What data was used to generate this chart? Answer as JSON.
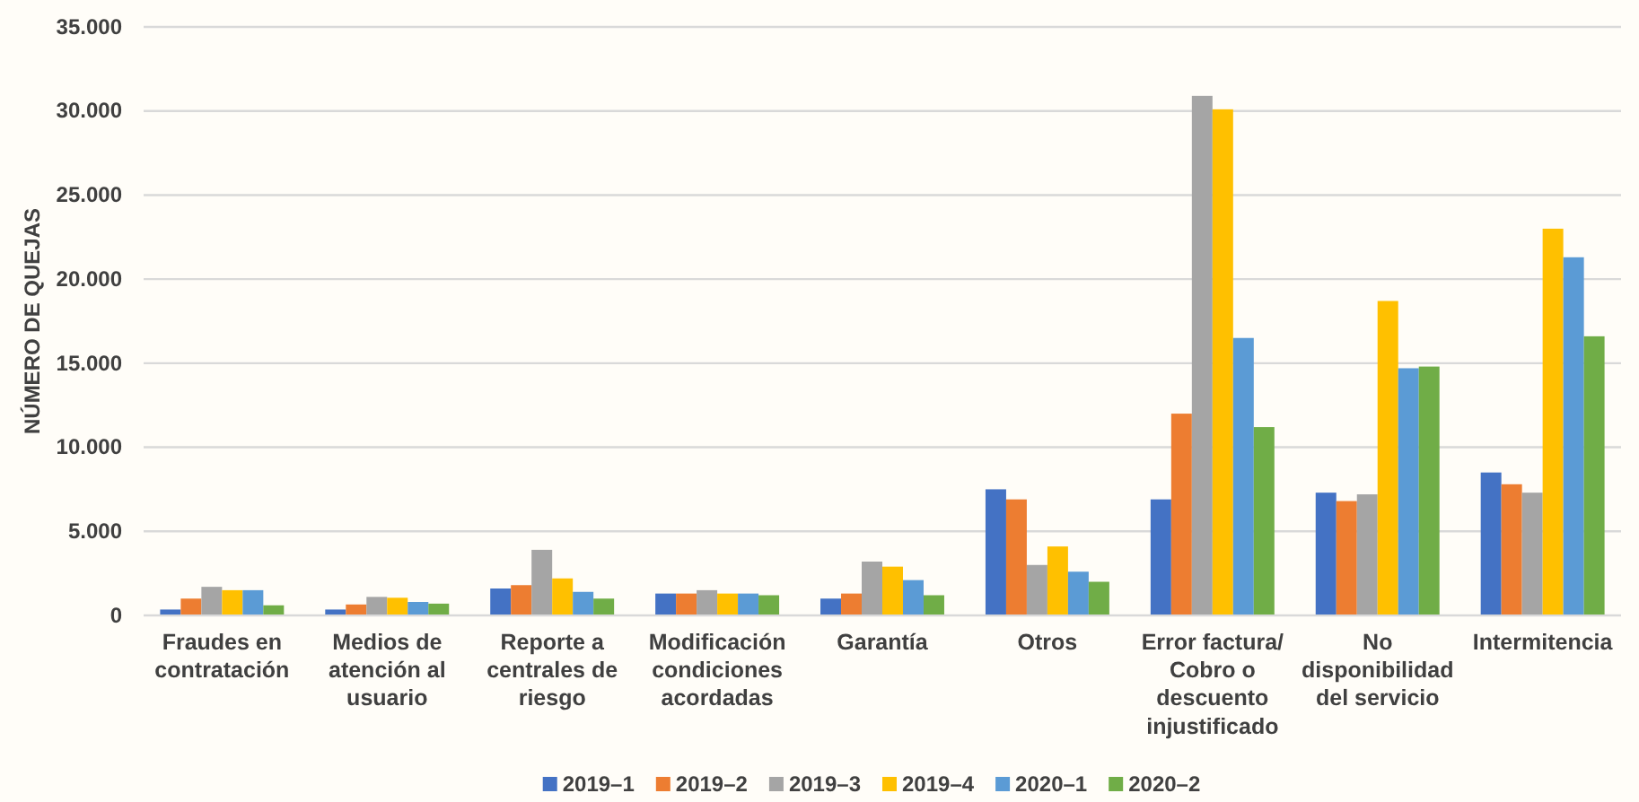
{
  "chart_data": {
    "type": "bar",
    "ylabel": "NÚMERO DE QUEJAS",
    "categories": [
      "Fraudes en contratación",
      "Medios de atención al usuario",
      "Reporte a centrales de riesgo",
      "Modificación condiciones acordadas",
      "Garantía",
      "Otros",
      "Error factura/ Cobro o descuento injustificado",
      "No disponibilidad del servicio",
      "Intermitencia"
    ],
    "series": [
      {
        "name": "2019–1",
        "color": "#4472c4",
        "values": [
          350,
          350,
          1600,
          1300,
          1000,
          7500,
          6900,
          7300,
          8500
        ]
      },
      {
        "name": "2019–2",
        "color": "#ed7d31",
        "values": [
          1000,
          650,
          1800,
          1300,
          1300,
          6900,
          12000,
          6800,
          7800
        ]
      },
      {
        "name": "2019–3",
        "color": "#a5a5a5",
        "values": [
          1700,
          1100,
          3900,
          1500,
          3200,
          3000,
          30900,
          7200,
          7300
        ]
      },
      {
        "name": "2019–4",
        "color": "#ffc000",
        "values": [
          1500,
          1050,
          2200,
          1300,
          2900,
          4100,
          30100,
          18700,
          23000
        ]
      },
      {
        "name": "2020–1",
        "color": "#5b9bd5",
        "values": [
          1500,
          800,
          1400,
          1300,
          2100,
          2600,
          16500,
          14700,
          21300
        ]
      },
      {
        "name": "2020–2",
        "color": "#70ad47",
        "values": [
          600,
          700,
          1000,
          1200,
          1200,
          2000,
          11200,
          14800,
          16600
        ]
      }
    ],
    "ylim": [
      0,
      35000
    ],
    "yticks": [
      {
        "value": 0,
        "label": "0"
      },
      {
        "value": 5000,
        "label": "5.000"
      },
      {
        "value": 10000,
        "label": "10.000"
      },
      {
        "value": 15000,
        "label": "15.000"
      },
      {
        "value": 20000,
        "label": "20.000"
      },
      {
        "value": 25000,
        "label": "25.000"
      },
      {
        "value": 30000,
        "label": "30.000"
      },
      {
        "value": 35000,
        "label": "35.000"
      }
    ],
    "grid": "y",
    "legend": "bottom"
  }
}
